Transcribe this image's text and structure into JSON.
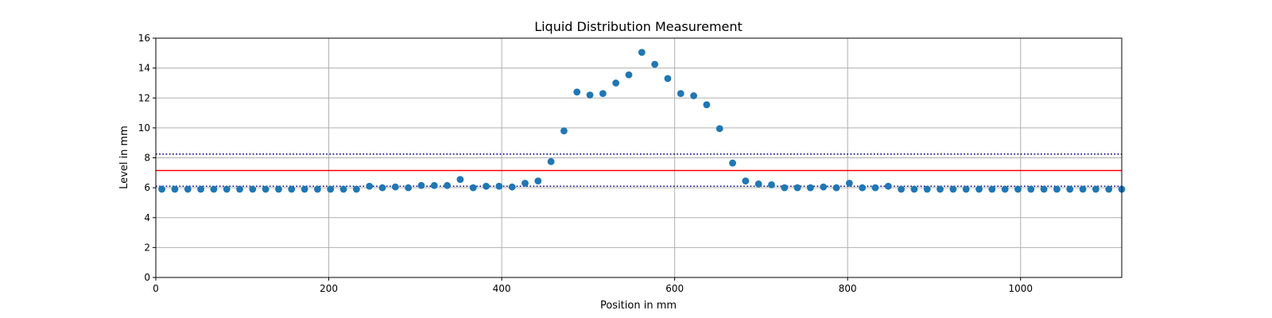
{
  "chart_data": {
    "type": "scatter",
    "title": "Liquid Distribution Measurement",
    "xlabel": "Position in mm",
    "ylabel": "Level in mm",
    "xlim": [
      0,
      1117
    ],
    "ylim": [
      0,
      16
    ],
    "xticks": [
      0,
      200,
      400,
      600,
      800,
      1000
    ],
    "yticks": [
      0,
      2,
      4,
      6,
      8,
      10,
      12,
      14,
      16
    ],
    "grid": true,
    "point_color": "#1f77b4",
    "series": [
      {
        "x": [
          7,
          22,
          37,
          52,
          67,
          82,
          97,
          112,
          127,
          142,
          157,
          172,
          187,
          202,
          217,
          232,
          247,
          262,
          277,
          292,
          307,
          322,
          337,
          352,
          367,
          382,
          397,
          412,
          427,
          442,
          457,
          472,
          487,
          502,
          517,
          532,
          547,
          562,
          577,
          592,
          607,
          622,
          637,
          652,
          667,
          682,
          697,
          712,
          727,
          742,
          757,
          772,
          787,
          802,
          817,
          832,
          847,
          862,
          877,
          892,
          907,
          922,
          937,
          952,
          967,
          982,
          997,
          1012,
          1027,
          1042,
          1057,
          1072,
          1087,
          1102,
          1117
        ],
        "y": [
          5.9,
          5.9,
          5.9,
          5.9,
          5.9,
          5.9,
          5.9,
          5.9,
          5.9,
          5.9,
          5.9,
          5.9,
          5.9,
          5.9,
          5.9,
          5.9,
          6.1,
          6.0,
          6.05,
          6.0,
          6.15,
          6.15,
          6.15,
          6.55,
          6.0,
          6.1,
          6.1,
          6.05,
          6.3,
          6.45,
          7.75,
          9.8,
          12.4,
          12.2,
          12.3,
          13.0,
          13.55,
          15.05,
          14.25,
          13.3,
          12.3,
          12.15,
          11.55,
          9.95,
          7.65,
          6.45,
          6.25,
          6.2,
          6.0,
          6.0,
          6.0,
          6.05,
          6.0,
          6.3,
          6.0,
          6.0,
          6.1,
          5.9,
          5.9,
          5.9,
          5.9,
          5.9,
          5.9,
          5.9,
          5.9,
          5.9,
          5.9,
          5.9,
          5.9,
          5.9,
          5.9,
          5.9,
          5.9,
          5.9,
          5.9
        ]
      }
    ],
    "reference_lines": [
      {
        "y": 7.15,
        "color": "#ff0000",
        "style": "solid"
      },
      {
        "y": 8.25,
        "color": "#00008b",
        "style": "dotted"
      },
      {
        "y": 6.1,
        "color": "#00008b",
        "style": "dotted"
      }
    ]
  }
}
